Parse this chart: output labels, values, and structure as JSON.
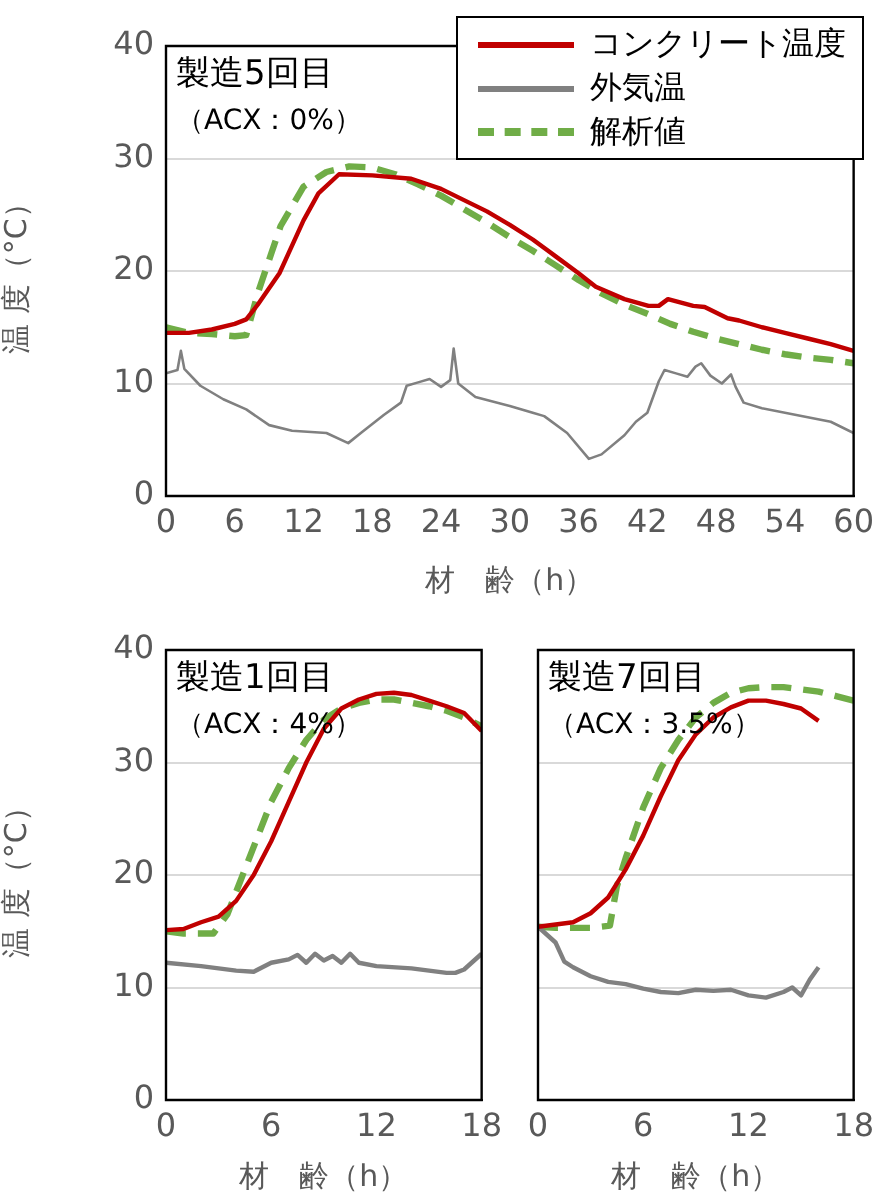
{
  "chart_data": [
    {
      "type": "line",
      "xlabel": "材　齢（h）",
      "ylabel": "温 度（°C）",
      "xlim": [
        0,
        60
      ],
      "xticks": [
        0,
        6,
        12,
        18,
        24,
        30,
        36,
        42,
        48,
        54,
        60
      ],
      "ylim": [
        0,
        40
      ],
      "yticks": [
        0,
        10,
        20,
        30,
        40
      ],
      "grid": "y",
      "legend": "top right",
      "marker": "none",
      "annotations": [
        "製造5回目",
        "（ACX：0%）"
      ],
      "series": [
        {
          "name": "コンクリート温度",
          "color": "#c00000",
          "line_style": "solid",
          "x": [
            0,
            2,
            4,
            6,
            7,
            8,
            9.9,
            12,
            13.3,
            15.1,
            18,
            21.4,
            24,
            26,
            28,
            30,
            32,
            34,
            36,
            37.5,
            40,
            42.1,
            43,
            43.8,
            46,
            47,
            49,
            50,
            52,
            54,
            56,
            58,
            60
          ],
          "values": [
            14.5,
            14.5,
            14.8,
            15.3,
            15.7,
            17,
            19.8,
            24.5,
            26.9,
            28.6,
            28.5,
            28.2,
            27.3,
            26.3,
            25.3,
            24.1,
            22.8,
            21.3,
            19.8,
            18.6,
            17.5,
            16.9,
            16.9,
            17.5,
            16.9,
            16.8,
            15.8,
            15.6,
            15,
            14.5,
            14,
            13.5,
            12.9
          ]
        },
        {
          "name": "外気温",
          "color": "#808080",
          "line_style": "solid",
          "x": [
            0,
            1,
            1.3,
            1.6,
            3,
            5,
            7,
            9,
            11,
            14,
            15.9,
            17,
            19,
            20.5,
            21,
            22,
            23,
            24,
            24.8,
            25.1,
            25.5,
            27,
            30,
            32,
            33,
            35,
            36.9,
            38,
            40,
            41,
            42,
            43,
            43.5,
            44.5,
            45.5,
            46.2,
            46.7,
            47.5,
            48.5,
            49.3,
            49.7,
            50.4,
            52,
            55,
            58,
            60
          ],
          "values": [
            10.9,
            11.2,
            12.9,
            11.3,
            9.8,
            8.6,
            7.7,
            6.3,
            5.8,
            5.6,
            4.7,
            5.6,
            7.2,
            8.3,
            9.8,
            10.1,
            10.4,
            9.7,
            10.3,
            13.1,
            10,
            8.8,
            8,
            7.4,
            7.1,
            5.6,
            3.3,
            3.7,
            5.4,
            6.6,
            7.4,
            10.2,
            11.2,
            10.9,
            10.6,
            11.5,
            11.8,
            10.7,
            10,
            10.8,
            9.7,
            8.3,
            7.8,
            7.2,
            6.6,
            5.6
          ]
        },
        {
          "name": "解析値",
          "color": "#70ad47",
          "line_style": "dashed",
          "x": [
            0,
            2,
            4,
            6,
            7,
            8,
            10,
            12,
            14,
            16,
            18,
            20,
            22,
            24,
            26,
            28,
            30,
            32,
            34,
            36,
            38,
            40,
            42,
            44,
            46,
            48,
            50,
            52,
            54,
            56,
            58,
            60
          ],
          "values": [
            15,
            14.5,
            14.4,
            14.2,
            14.3,
            18,
            24,
            27.5,
            28.8,
            29.3,
            29.2,
            28.6,
            27.7,
            26.7,
            25.5,
            24.3,
            23,
            21.8,
            20.5,
            19.2,
            18,
            17,
            16.2,
            15.3,
            14.6,
            14,
            13.5,
            13,
            12.6,
            12.3,
            12.1,
            11.8
          ]
        }
      ]
    },
    {
      "type": "line",
      "xlabel": "材　齢（h）",
      "ylabel": "温 度（°C）",
      "xlim": [
        0,
        18
      ],
      "xticks": [
        0,
        6,
        12,
        18
      ],
      "ylim": [
        0,
        40
      ],
      "yticks": [
        0,
        10,
        20,
        30,
        40
      ],
      "grid": "y",
      "marker": "none",
      "annotations": [
        "製造1回目",
        "（ACX：4%）"
      ],
      "series": [
        {
          "color": "#c00000",
          "line_style": "solid",
          "x": [
            0,
            1,
            2,
            3,
            4,
            5,
            6,
            7,
            8,
            9,
            10,
            11,
            12,
            13,
            14,
            15,
            16,
            17,
            18
          ],
          "values": [
            15.1,
            15.2,
            15.8,
            16.3,
            17.7,
            20,
            23,
            26.5,
            30,
            33,
            34.8,
            35.6,
            36.1,
            36.2,
            36,
            35.5,
            35,
            34.4,
            32.8
          ]
        },
        {
          "color": "#808080",
          "line_style": "solid",
          "x": [
            0,
            2,
            4,
            5,
            6,
            7,
            7.5,
            8,
            8.5,
            9,
            9.5,
            10,
            10.5,
            11,
            12,
            14,
            16,
            16.5,
            17,
            18
          ],
          "values": [
            12.2,
            11.9,
            11.5,
            11.4,
            12.2,
            12.5,
            12.9,
            12.2,
            13,
            12.4,
            12.8,
            12.2,
            13,
            12.2,
            11.9,
            11.7,
            11.3,
            11.3,
            11.6,
            13
          ]
        },
        {
          "color": "#70ad47",
          "line_style": "dashed",
          "x": [
            0,
            1,
            2.7,
            3.5,
            4,
            5,
            6,
            7,
            8,
            9,
            10,
            11,
            12,
            13,
            14,
            15,
            16,
            17,
            18
          ],
          "values": [
            15,
            14.8,
            14.8,
            16.5,
            18.5,
            22.5,
            26.5,
            29.5,
            32,
            33.8,
            34.8,
            35.3,
            35.6,
            35.6,
            35.3,
            35,
            34.6,
            34,
            33.2
          ]
        }
      ]
    },
    {
      "type": "line",
      "xlabel": "材　齢（h）",
      "xlim": [
        0,
        18
      ],
      "xticks": [
        0,
        6,
        12,
        18
      ],
      "ylim": [
        0,
        40
      ],
      "yticks": [
        0,
        10,
        20,
        30,
        40
      ],
      "tick_labels": "x",
      "grid": "y",
      "marker": "none",
      "annotations": [
        "製造7回目",
        "（ACX：3.5%）"
      ],
      "series": [
        {
          "color": "#c00000",
          "line_style": "solid",
          "x": [
            0,
            2,
            3,
            4,
            5,
            6,
            7,
            8,
            9,
            10,
            11,
            12,
            13,
            14,
            15,
            16
          ],
          "values": [
            15.4,
            15.8,
            16.6,
            18,
            20.5,
            23.5,
            27,
            30.2,
            32.5,
            34,
            34.9,
            35.5,
            35.5,
            35.2,
            34.8,
            33.7
          ]
        },
        {
          "color": "#808080",
          "line_style": "solid",
          "x": [
            0,
            1,
            1.5,
            2,
            3,
            4,
            5,
            6,
            7,
            8,
            9,
            10,
            11,
            12,
            13,
            14,
            14.5,
            15,
            15.5,
            16
          ],
          "values": [
            15.4,
            14,
            12.3,
            11.8,
            11,
            10.5,
            10.3,
            9.9,
            9.6,
            9.5,
            9.8,
            9.7,
            9.8,
            9.3,
            9.1,
            9.6,
            10,
            9.3,
            10.7,
            11.8
          ]
        },
        {
          "color": "#70ad47",
          "line_style": "dashed",
          "x": [
            0,
            1,
            3,
            4.1,
            4.5,
            5,
            6,
            7,
            8,
            9,
            10,
            11,
            12,
            13,
            14,
            15,
            16,
            17,
            18
          ],
          "values": [
            15.4,
            15.3,
            15.3,
            15.5,
            19,
            21.5,
            26,
            29.5,
            32,
            34,
            35.3,
            36.2,
            36.6,
            36.7,
            36.7,
            36.5,
            36.3,
            35.9,
            35.5
          ]
        }
      ]
    }
  ]
}
